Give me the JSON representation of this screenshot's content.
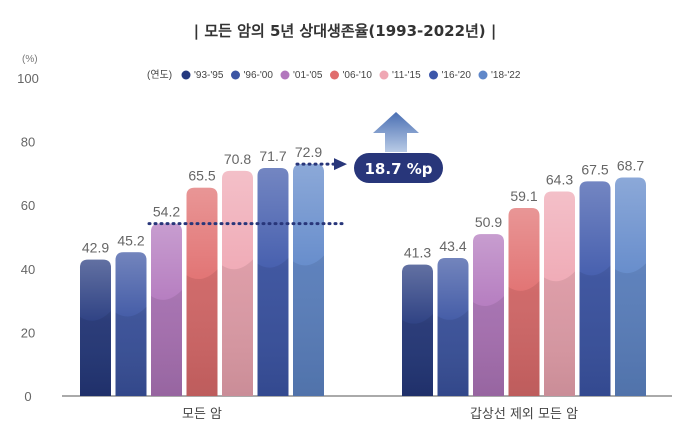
{
  "chart_data": {
    "type": "bar",
    "title": "| 모든 암의 5년 상대생존율(1993-2022년) |",
    "unit_label": "(%)",
    "legend_prefix": "(연도)",
    "ylim": [
      0,
      100
    ],
    "yticks": [
      0,
      20,
      40,
      60,
      80,
      100
    ],
    "categories": [
      "모든 암",
      "갑상선 제외 모든 암"
    ],
    "series": [
      {
        "name": "'93-'95",
        "color": "#25397e",
        "values": [
          42.9,
          41.3
        ]
      },
      {
        "name": "'96-'00",
        "color": "#3c55a3",
        "values": [
          45.2,
          43.4
        ]
      },
      {
        "name": "'01-'05",
        "color": "#b277bd",
        "values": [
          54.2,
          50.9
        ]
      },
      {
        "name": "'06-'10",
        "color": "#e06d6d",
        "values": [
          65.5,
          59.1
        ]
      },
      {
        "name": "'11-'15",
        "color": "#efa7b3",
        "values": [
          70.8,
          64.3
        ]
      },
      {
        "name": "'16-'20",
        "color": "#3d57aa",
        "values": [
          71.7,
          67.5
        ]
      },
      {
        "name": "'18-'22",
        "color": "#5f87c9",
        "values": [
          72.9,
          68.7
        ]
      }
    ],
    "annotation": {
      "text": "18.7 %p",
      "from_value": 54.2,
      "to_value": 72.9,
      "color": "#28367a",
      "arrow_color": "#5579b8"
    },
    "xlabel": "",
    "ylabel": "",
    "grid": false
  }
}
